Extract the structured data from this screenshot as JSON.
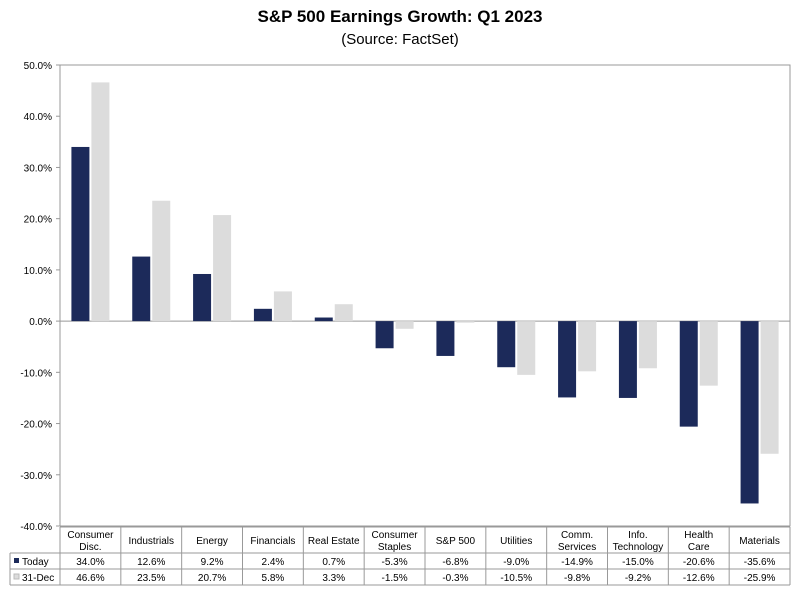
{
  "chart_data": {
    "type": "bar",
    "title": "S&P 500 Earnings Growth: Q1 2023",
    "subtitle": "(Source: FactSet)",
    "categories": [
      [
        "Consumer",
        "Disc."
      ],
      [
        "Industrials"
      ],
      [
        "Energy"
      ],
      [
        "Financials"
      ],
      [
        "Real Estate"
      ],
      [
        "Consumer",
        "Staples"
      ],
      [
        "S&P 500"
      ],
      [
        "Utilities"
      ],
      [
        "Comm.",
        "Services"
      ],
      [
        "Info.",
        "Technology"
      ],
      [
        "Health",
        "Care"
      ],
      [
        "Materials"
      ]
    ],
    "ylim": [
      -40,
      50
    ],
    "yticks": [
      "50.0%",
      "40.0%",
      "30.0%",
      "20.0%",
      "10.0%",
      "0.0%",
      "-10.0%",
      "-20.0%",
      "-30.0%",
      "-40.0%"
    ],
    "ytick_values": [
      50,
      40,
      30,
      20,
      10,
      0,
      -10,
      -20,
      -30,
      -40
    ],
    "legend_placement": "table-below",
    "series": [
      {
        "name": "Today",
        "color": "#1c2a5a",
        "values": [
          34.0,
          12.6,
          9.2,
          2.4,
          0.7,
          -5.3,
          -6.8,
          -9.0,
          -14.9,
          -15.0,
          -20.6,
          -35.6
        ],
        "labels": [
          "34.0%",
          "12.6%",
          "9.2%",
          "2.4%",
          "0.7%",
          "-5.3%",
          "-6.8%",
          "-9.0%",
          "-14.9%",
          "-15.0%",
          "-20.6%",
          "-35.6%"
        ]
      },
      {
        "name": "31-Dec",
        "color": "#dcdcdc",
        "values": [
          46.6,
          23.5,
          20.7,
          5.8,
          3.3,
          -1.5,
          -0.3,
          -10.5,
          -9.8,
          -9.2,
          -12.6,
          -25.9
        ],
        "labels": [
          "46.6%",
          "23.5%",
          "20.7%",
          "5.8%",
          "3.3%",
          "-1.5%",
          "-0.3%",
          "-10.5%",
          "-9.8%",
          "-9.2%",
          "-12.6%",
          "-25.9%"
        ]
      }
    ]
  }
}
